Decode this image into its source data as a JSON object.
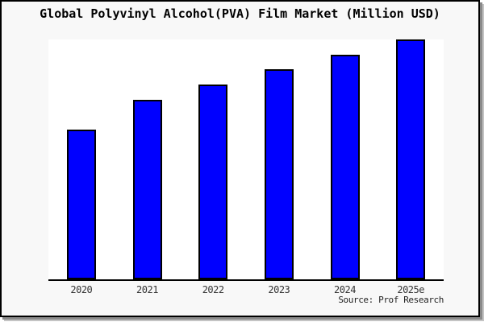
{
  "window": {
    "title": "Global Polyvinyl Alcohol(PVA) Film Market (Million USD)"
  },
  "chart_data": {
    "type": "bar",
    "title": "Global Polyvinyl Alcohol(PVA) Film Market (Million USD)",
    "categories": [
      "2020",
      "2021",
      "2022",
      "2023",
      "2024",
      "2025e"
    ],
    "values": [
      62.5,
      74.9,
      81.3,
      87.6,
      93.6,
      100
    ],
    "xlabel": "",
    "ylabel": "",
    "ylim": [
      0,
      100
    ],
    "value_note": "relative bar heights, tallest bar = 100 (no y-axis scale shown in chart)",
    "grid": false,
    "legend": false,
    "colors": {
      "bar_fill": "#0000ff",
      "bar_border": "#000000",
      "axis": "#000000",
      "background": "#f8f8f8",
      "plot_background": "#ffffff"
    }
  },
  "footer": {
    "source_label": "Source: Prof Research"
  }
}
